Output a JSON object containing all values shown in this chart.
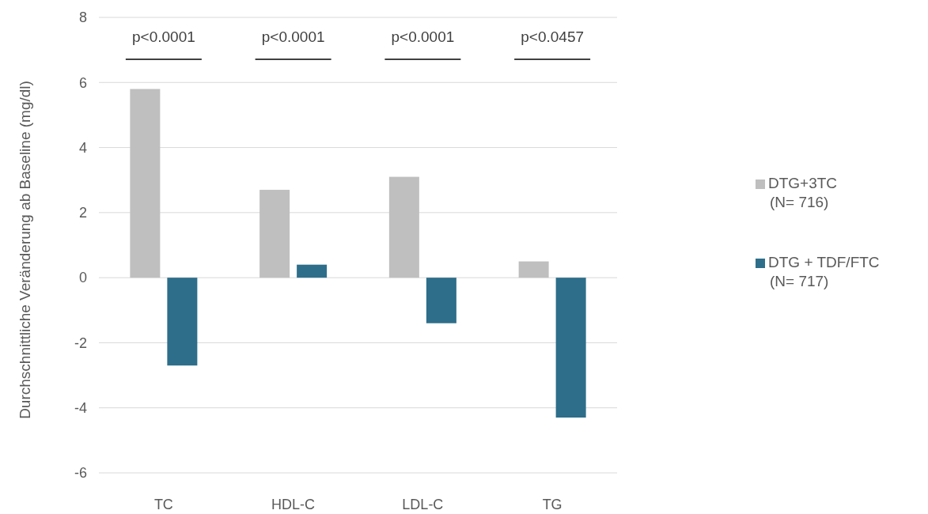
{
  "chart_data": {
    "type": "bar",
    "ylabel": "Durchschnittliche Veränderung ab Baseline (mg/dl)",
    "categories": [
      "TC",
      "HDL-C",
      "LDL-C",
      "TG"
    ],
    "series": [
      {
        "name": "DTG+3TC (N= 716)",
        "color": "#bfbfbf",
        "values": [
          5.8,
          2.7,
          3.1,
          0.5
        ]
      },
      {
        "name": "DTG + TDF/FTC (N= 717)",
        "color": "#2e6e8a",
        "values": [
          -2.7,
          0.4,
          -1.4,
          -4.3
        ]
      }
    ],
    "ylim": [
      -6,
      8
    ],
    "yticks": [
      -6,
      -4,
      -2,
      0,
      2,
      4,
      6,
      8
    ],
    "grid": "y",
    "legend": "right",
    "annotations": [
      "p<0.0001",
      "p<0.0001",
      "p<0.0001",
      "p<0.0457"
    ]
  }
}
